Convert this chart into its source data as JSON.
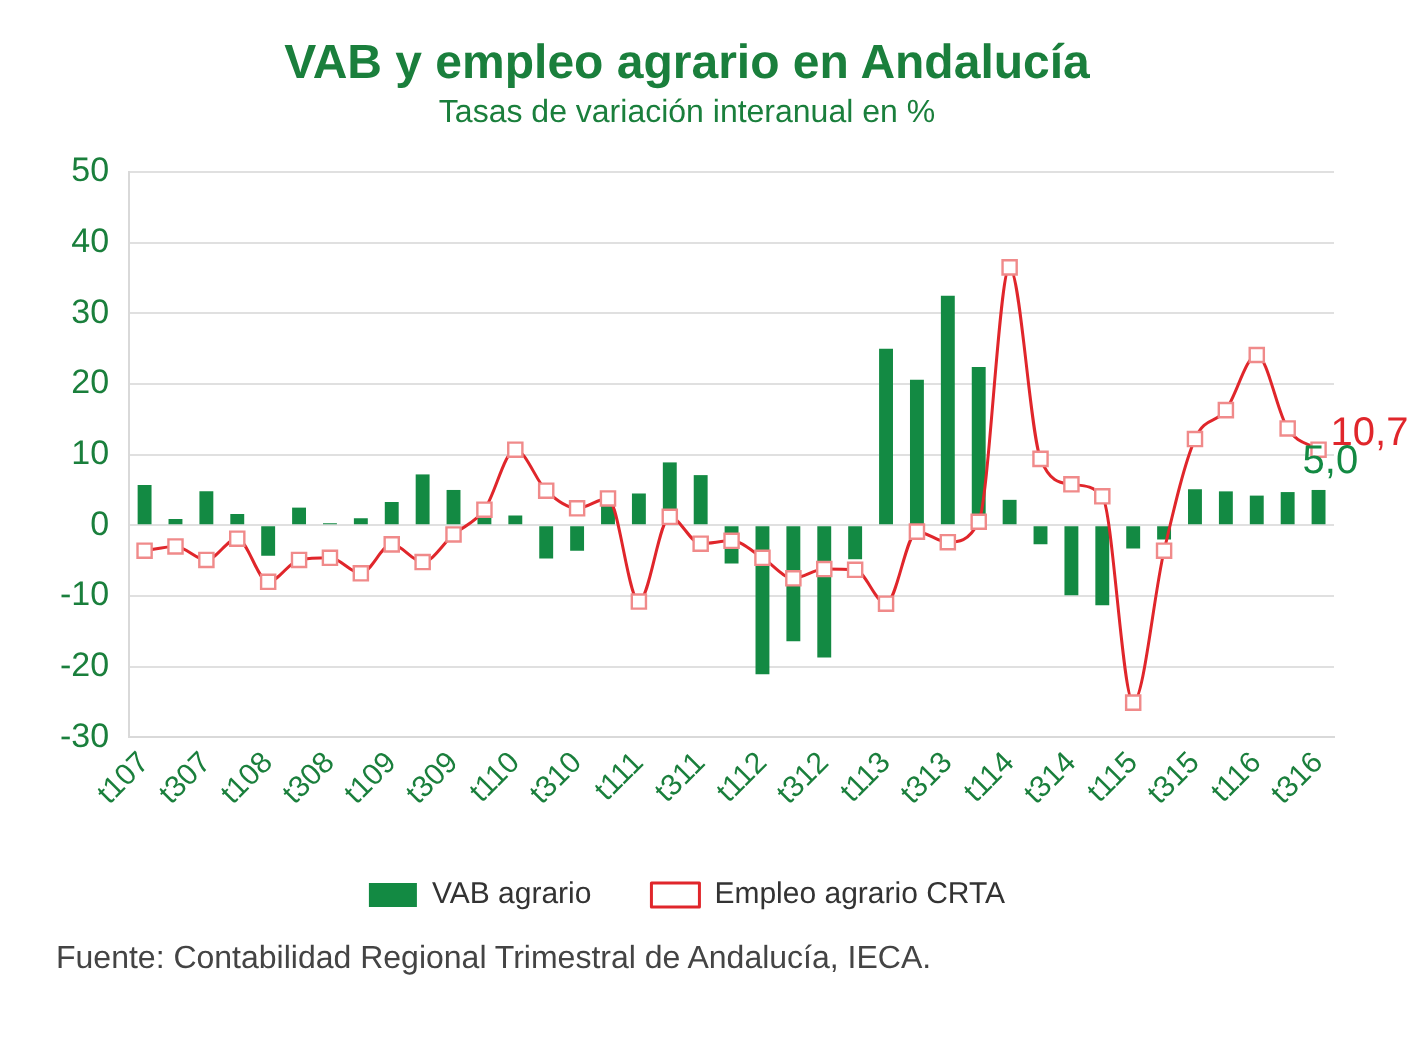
{
  "chart_data": {
    "type": "bar",
    "title": "VAB y empleo agrario en Andalucía",
    "subtitle": "Tasas de variación interanual en %",
    "categories": [
      "t107",
      null,
      "t307",
      null,
      "t108",
      null,
      "t308",
      null,
      "t109",
      null,
      "t309",
      null,
      "t110",
      null,
      "t310",
      null,
      "t111",
      null,
      "t311",
      null,
      "t112",
      null,
      "t312",
      null,
      "t113",
      null,
      "t313",
      null,
      "t114",
      null,
      "t314",
      null,
      "t115",
      null,
      "t315",
      null,
      "t116",
      null,
      "t316"
    ],
    "series": [
      {
        "name": "VAB agrario",
        "color": "#138a43",
        "values": [
          5.7,
          0.9,
          4.8,
          1.6,
          -4.3,
          2.5,
          0.3,
          1.0,
          3.3,
          7.2,
          5.0,
          1.2,
          1.4,
          -4.7,
          -3.6,
          3.0,
          4.5,
          8.9,
          7.1,
          -5.4,
          -21.1,
          -16.4,
          -18.7,
          -4.8,
          25.0,
          20.6,
          32.5,
          22.4,
          3.6,
          -2.7,
          -9.9,
          -11.3,
          -3.3,
          -2.0,
          5.1,
          4.8,
          4.2,
          4.7,
          5.0
        ],
        "value_labels": [
          null,
          null,
          null,
          null,
          null,
          null,
          null,
          null,
          null,
          null,
          null,
          null,
          null,
          null,
          null,
          null,
          null,
          null,
          null,
          null,
          null,
          null,
          null,
          null,
          null,
          null,
          null,
          null,
          null,
          null,
          null,
          null,
          null,
          null,
          null,
          null,
          null,
          null,
          "5,0"
        ]
      },
      {
        "name": "Empleo agrario CRTA",
        "type": "line",
        "color": "#e0262b",
        "marker": "square",
        "values": [
          -3.6,
          -3.0,
          -4.9,
          -1.9,
          -8.0,
          -4.9,
          -4.6,
          -6.8,
          -2.7,
          -5.2,
          -1.3,
          2.2,
          10.7,
          4.9,
          2.4,
          3.8,
          -10.8,
          1.2,
          -2.6,
          -2.2,
          -4.6,
          -7.5,
          -6.2,
          -6.3,
          -11.1,
          -0.9,
          -2.4,
          0.5,
          36.5,
          9.4,
          5.8,
          4.1,
          -25.1,
          -3.6,
          12.2,
          16.3,
          24.1,
          13.7,
          10.7
        ],
        "value_labels": [
          null,
          null,
          null,
          null,
          null,
          null,
          null,
          null,
          null,
          null,
          null,
          null,
          null,
          null,
          null,
          null,
          null,
          null,
          null,
          null,
          null,
          null,
          null,
          null,
          null,
          null,
          null,
          null,
          null,
          null,
          null,
          null,
          null,
          null,
          null,
          null,
          null,
          null,
          "10,7"
        ]
      }
    ],
    "ylim": [
      -30,
      50
    ],
    "yticks": [
      -30,
      -20,
      -10,
      0,
      10,
      20,
      30,
      40,
      50
    ],
    "grid": "y",
    "legend": "bottom",
    "annotations": [
      "Fuente: Contabilidad Regional Trimestral de Andalucía, IECA."
    ]
  }
}
